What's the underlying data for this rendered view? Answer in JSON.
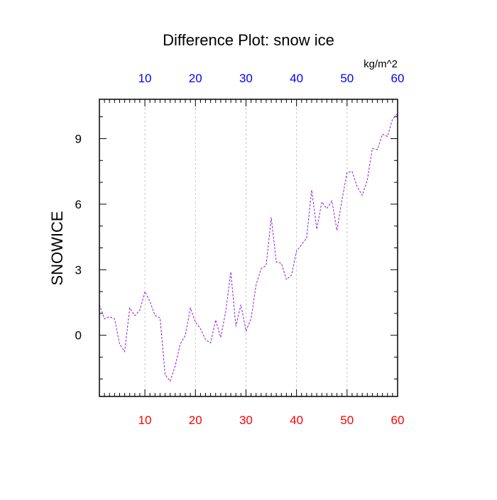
{
  "chart_data": {
    "type": "line",
    "title": "Difference Plot: snow ice",
    "ylabel": "SNOWICE",
    "units": "kg/m^2",
    "xlim": [
      1,
      60
    ],
    "ylim": [
      -2.8,
      10.8
    ],
    "xticks": [
      10,
      20,
      30,
      40,
      50,
      60
    ],
    "yticks": [
      0,
      3,
      6,
      9
    ],
    "grid": "vertical dashed",
    "colors": {
      "line": "#8a1fd8",
      "bottom_ticks": "#ff0000",
      "top_ticks": "#0000ff",
      "grid": "#c8c8c8"
    },
    "series": [
      {
        "x": [
          1,
          2,
          3,
          4,
          5,
          6,
          7,
          8,
          9,
          10,
          11,
          12,
          13,
          14,
          15,
          16,
          17,
          18,
          19,
          20,
          21,
          22,
          23,
          24,
          25,
          26,
          27,
          28,
          29,
          30,
          31,
          32,
          33,
          34,
          35,
          36,
          37,
          38,
          39,
          40,
          41,
          42,
          43,
          44,
          45,
          46,
          47,
          48,
          49,
          50,
          51,
          52,
          53,
          54,
          55,
          56,
          57,
          58,
          59,
          60
        ],
        "y": [
          1.4,
          0.75,
          0.85,
          0.75,
          -0.4,
          -0.75,
          1.25,
          0.9,
          1.15,
          2.0,
          1.55,
          0.9,
          0.8,
          -1.8,
          -2.1,
          -1.4,
          -0.4,
          0.0,
          1.25,
          0.6,
          0.3,
          -0.2,
          -0.35,
          0.7,
          -0.1,
          1.1,
          2.9,
          0.4,
          1.4,
          0.2,
          0.75,
          2.3,
          3.05,
          3.2,
          5.4,
          3.35,
          3.3,
          2.55,
          2.75,
          3.85,
          4.15,
          4.45,
          6.65,
          4.85,
          6.1,
          5.8,
          6.15,
          4.8,
          6.2,
          7.45,
          7.5,
          6.8,
          6.4,
          7.1,
          8.55,
          8.5,
          9.2,
          9.1,
          9.9,
          10.15
        ]
      }
    ]
  }
}
